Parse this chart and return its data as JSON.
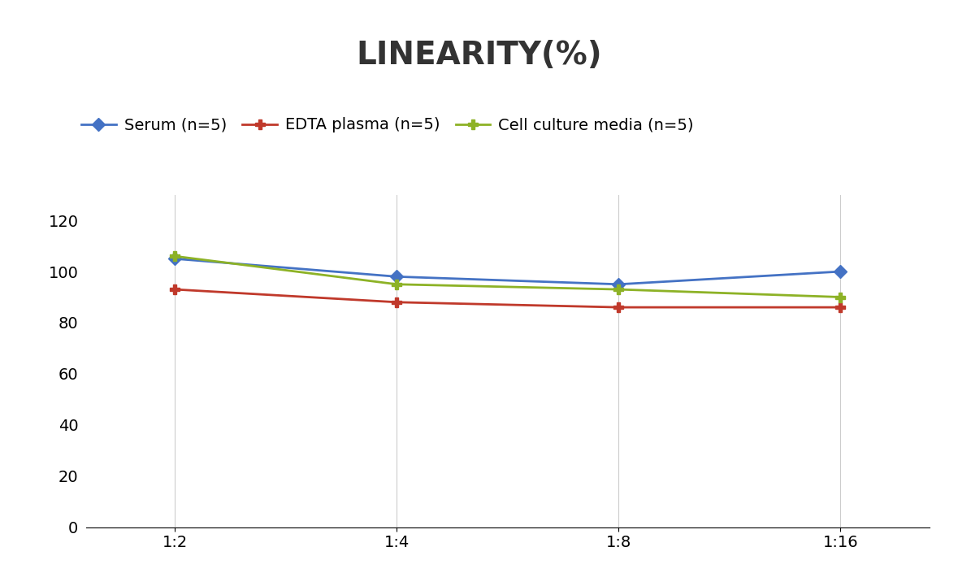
{
  "title": "LINEARITY(%)",
  "x_labels": [
    "1:2",
    "1:4",
    "1:8",
    "1:16"
  ],
  "x_positions": [
    0,
    1,
    2,
    3
  ],
  "series": [
    {
      "label": "Serum (n=5)",
      "values": [
        105,
        98,
        95,
        100
      ],
      "color": "#4472C4",
      "marker": "D",
      "markersize": 8,
      "linewidth": 2.0
    },
    {
      "label": "EDTA plasma (n=5)",
      "values": [
        93,
        88,
        86,
        86
      ],
      "color": "#C0392B",
      "marker": "P",
      "markersize": 9,
      "linewidth": 2.0
    },
    {
      "label": "Cell culture media (n=5)",
      "values": [
        106,
        95,
        93,
        90
      ],
      "color": "#8DB226",
      "marker": "P",
      "markersize": 9,
      "linewidth": 2.0
    }
  ],
  "ylim": [
    0,
    130
  ],
  "yticks": [
    0,
    20,
    40,
    60,
    80,
    100,
    120
  ],
  "grid_color": "#CCCCCC",
  "background_color": "#FFFFFF",
  "title_fontsize": 28,
  "legend_fontsize": 14,
  "tick_fontsize": 14
}
